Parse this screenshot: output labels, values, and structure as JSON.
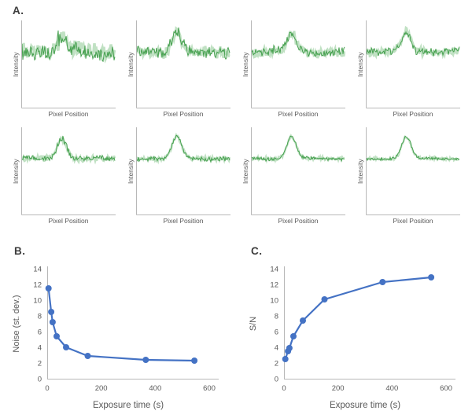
{
  "colors": {
    "trace_green": "#46a04f",
    "trace_halo": "#b5dcb8",
    "line_blue": "#4472c4",
    "axis_gray": "#b8b8b8",
    "text_gray": "#595959",
    "label_dark": "#3d3d3d"
  },
  "chart_data": [
    {
      "id": "panel_a",
      "type": "line",
      "title": "A.",
      "xlabel": "Pixel Position",
      "ylabel": "Intensity",
      "description": "Eight green line profiles with a central peak; noise level decreases from first to last profile",
      "subplots": [
        {
          "noise_amp": 12.5,
          "peak_height": 18,
          "seed": 7
        },
        {
          "noise_amp": 8.5,
          "peak_height": 24,
          "seed": 13
        },
        {
          "noise_amp": 7.5,
          "peak_height": 22,
          "seed": 21
        },
        {
          "noise_amp": 6.0,
          "peak_height": 25,
          "seed": 34
        },
        {
          "noise_amp": 4.5,
          "peak_height": 26,
          "seed": 55
        },
        {
          "noise_amp": 3.5,
          "peak_height": 28,
          "seed": 89
        },
        {
          "noise_amp": 3.0,
          "peak_height": 28,
          "seed": 144
        },
        {
          "noise_amp": 2.6,
          "peak_height": 28,
          "seed": 233
        }
      ]
    },
    {
      "id": "panel_b",
      "type": "scatter",
      "title": "B.",
      "xlabel": "Exposure time (s)",
      "ylabel": "Noise (st. dev.)",
      "xlim": [
        0,
        600
      ],
      "ylim": [
        0,
        14
      ],
      "xticks": [
        0,
        200,
        400,
        600
      ],
      "yticks": [
        0,
        2,
        4,
        6,
        8,
        10,
        12,
        14
      ],
      "x": [
        5,
        15,
        20,
        35,
        70,
        150,
        365,
        545
      ],
      "y": [
        11.5,
        8.5,
        7.2,
        5.4,
        4.0,
        2.9,
        2.4,
        2.3
      ],
      "legend": null,
      "grid": false
    },
    {
      "id": "panel_c",
      "type": "scatter",
      "title": "C.",
      "xlabel": "Exposure time (s)",
      "ylabel": "S/N",
      "xlim": [
        0,
        600
      ],
      "ylim": [
        0,
        14
      ],
      "xticks": [
        0,
        200,
        400,
        600
      ],
      "yticks": [
        0,
        2,
        4,
        6,
        8,
        10,
        12,
        14
      ],
      "x": [
        5,
        15,
        20,
        35,
        70,
        150,
        365,
        545
      ],
      "y": [
        2.5,
        3.5,
        3.9,
        5.4,
        7.4,
        10.1,
        12.3,
        12.9
      ],
      "legend": null,
      "grid": false
    }
  ]
}
